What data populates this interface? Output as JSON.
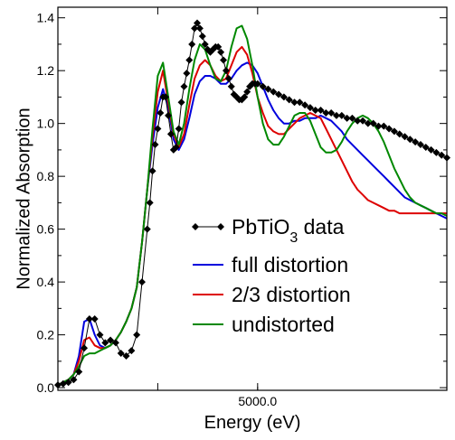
{
  "chart_data": {
    "type": "line",
    "xlabel": "Energy (eV)",
    "ylabel": "Normalized Absorption",
    "xlim": [
      4962,
      5036
    ],
    "ylim": [
      -0.01,
      1.44
    ],
    "x_tick_major": [
      4981,
      5000
    ],
    "x_tick_labels": [
      "",
      "5000.0"
    ],
    "y_ticks": [
      0.0,
      0.2,
      0.4,
      0.6,
      0.8,
      1.0,
      1.2,
      1.4
    ],
    "y_tick_labels": [
      "0.0",
      "0.2",
      "0.4",
      "0.6",
      "0.8",
      "1.0",
      "1.2",
      "1.4"
    ],
    "grid": false,
    "legend": {
      "placement": "center-right",
      "data_label_prefix": "PbTiO",
      "data_label_sub": "3",
      "data_label_suffix": " data"
    },
    "series": [
      {
        "name": "PbTiO3 data",
        "color": "#000000",
        "marker": "diamond",
        "x": [
          4962,
          4963,
          4964,
          4965,
          4966,
          4967,
          4968,
          4969,
          4970,
          4971,
          4972,
          4973,
          4974,
          4975,
          4976,
          4977,
          4978,
          4979,
          4979.5,
          4980,
          4980.5,
          4981,
          4981.5,
          4982,
          4982.5,
          4983,
          4983.5,
          4984,
          4984.5,
          4985,
          4985.5,
          4986,
          4986.5,
          4987,
          4987.5,
          4988,
          4988.5,
          4989,
          4989.5,
          4990,
          4990.5,
          4991,
          4991.5,
          4992,
          4992.5,
          4993,
          4993.5,
          4994,
          4994.5,
          4995,
          4995.5,
          4996,
          4996.5,
          4997,
          4997.5,
          4998,
          4998.5,
          4999,
          4999.5,
          5000,
          5001,
          5002,
          5003,
          5004,
          5005,
          5006,
          5007,
          5008,
          5009,
          5010,
          5011,
          5012,
          5013,
          5014,
          5015,
          5016,
          5017,
          5018,
          5019,
          5020,
          5021,
          5022,
          5023,
          5024,
          5025,
          5026,
          5027,
          5028,
          5029,
          5030,
          5031,
          5032,
          5033,
          5034,
          5035,
          5036
        ],
        "y": [
          0.01,
          0.015,
          0.02,
          0.03,
          0.06,
          0.15,
          0.26,
          0.26,
          0.2,
          0.17,
          0.18,
          0.17,
          0.13,
          0.12,
          0.14,
          0.2,
          0.4,
          0.6,
          0.7,
          0.82,
          0.92,
          0.98,
          1.04,
          1.1,
          1.1,
          1.03,
          0.96,
          0.9,
          0.91,
          0.98,
          1.08,
          1.14,
          1.19,
          1.24,
          1.3,
          1.36,
          1.38,
          1.36,
          1.33,
          1.3,
          1.28,
          1.27,
          1.28,
          1.29,
          1.29,
          1.27,
          1.24,
          1.2,
          1.17,
          1.14,
          1.11,
          1.1,
          1.09,
          1.09,
          1.1,
          1.12,
          1.14,
          1.15,
          1.15,
          1.15,
          1.14,
          1.13,
          1.12,
          1.11,
          1.1,
          1.09,
          1.08,
          1.08,
          1.07,
          1.06,
          1.05,
          1.05,
          1.04,
          1.04,
          1.03,
          1.03,
          1.02,
          1.02,
          1.01,
          1.01,
          1.0,
          1.0,
          0.99,
          0.99,
          0.98,
          0.97,
          0.96,
          0.95,
          0.94,
          0.93,
          0.92,
          0.91,
          0.9,
          0.89,
          0.88,
          0.87
        ]
      },
      {
        "name": "full distortion",
        "color": "#0000dd",
        "x": [
          4962,
          4963,
          4964,
          4965,
          4966,
          4967,
          4968,
          4969,
          4970,
          4971,
          4972,
          4973,
          4974,
          4975,
          4976,
          4977,
          4978,
          4979,
          4980,
          4981,
          4982,
          4983,
          4984,
          4985,
          4986,
          4987,
          4988,
          4989,
          4990,
          4991,
          4992,
          4993,
          4994,
          4995,
          4996,
          4997,
          4998,
          4999,
          5000,
          5001,
          5002,
          5003,
          5004,
          5005,
          5006,
          5007,
          5008,
          5009,
          5010,
          5011,
          5012,
          5013,
          5014,
          5015,
          5016,
          5017,
          5018,
          5019,
          5020,
          5021,
          5022,
          5023,
          5024,
          5025,
          5026,
          5027,
          5028,
          5029,
          5030,
          5031,
          5032,
          5033,
          5034,
          5035,
          5036
        ],
        "y": [
          0.01,
          0.02,
          0.03,
          0.05,
          0.12,
          0.25,
          0.26,
          0.2,
          0.16,
          0.15,
          0.16,
          0.18,
          0.21,
          0.25,
          0.3,
          0.38,
          0.55,
          0.75,
          0.92,
          1.06,
          1.13,
          1.06,
          0.94,
          0.9,
          0.94,
          1.02,
          1.11,
          1.16,
          1.18,
          1.18,
          1.17,
          1.15,
          1.15,
          1.17,
          1.2,
          1.22,
          1.23,
          1.22,
          1.19,
          1.14,
          1.09,
          1.05,
          1.02,
          1.0,
          1.0,
          1.01,
          1.01,
          1.02,
          1.02,
          1.02,
          1.03,
          1.02,
          1.01,
          0.99,
          0.97,
          0.94,
          0.92,
          0.9,
          0.88,
          0.86,
          0.84,
          0.82,
          0.8,
          0.78,
          0.76,
          0.74,
          0.72,
          0.71,
          0.7,
          0.69,
          0.68,
          0.67,
          0.66,
          0.65,
          0.64
        ]
      },
      {
        "name": "2/3 distortion",
        "color": "#dd0000",
        "x": [
          4962,
          4963,
          4964,
          4965,
          4966,
          4967,
          4968,
          4969,
          4970,
          4971,
          4972,
          4973,
          4974,
          4975,
          4976,
          4977,
          4978,
          4979,
          4980,
          4981,
          4982,
          4983,
          4984,
          4985,
          4986,
          4987,
          4988,
          4989,
          4990,
          4991,
          4992,
          4993,
          4994,
          4995,
          4996,
          4997,
          4998,
          4999,
          5000,
          5001,
          5002,
          5003,
          5004,
          5005,
          5006,
          5007,
          5008,
          5009,
          5010,
          5011,
          5012,
          5013,
          5014,
          5015,
          5016,
          5017,
          5018,
          5019,
          5020,
          5021,
          5022,
          5023,
          5024,
          5025,
          5026,
          5027,
          5028,
          5029,
          5030,
          5031,
          5032,
          5033,
          5034,
          5035,
          5036
        ],
        "y": [
          0.01,
          0.02,
          0.03,
          0.05,
          0.1,
          0.18,
          0.19,
          0.16,
          0.15,
          0.15,
          0.16,
          0.18,
          0.21,
          0.25,
          0.3,
          0.38,
          0.55,
          0.75,
          0.95,
          1.12,
          1.2,
          1.08,
          0.96,
          0.91,
          0.96,
          1.07,
          1.17,
          1.22,
          1.24,
          1.22,
          1.18,
          1.16,
          1.17,
          1.22,
          1.27,
          1.29,
          1.26,
          1.19,
          1.1,
          1.04,
          0.99,
          0.97,
          0.96,
          0.96,
          0.98,
          1.0,
          1.02,
          1.03,
          1.04,
          1.03,
          1.02,
          0.98,
          0.94,
          0.9,
          0.86,
          0.82,
          0.78,
          0.75,
          0.73,
          0.71,
          0.7,
          0.69,
          0.68,
          0.67,
          0.67,
          0.66,
          0.66,
          0.66,
          0.66,
          0.66,
          0.66,
          0.66,
          0.66,
          0.66,
          0.66
        ]
      },
      {
        "name": "undistorted",
        "color": "#008800",
        "x": [
          4962,
          4963,
          4964,
          4965,
          4966,
          4967,
          4968,
          4969,
          4970,
          4971,
          4972,
          4973,
          4974,
          4975,
          4976,
          4977,
          4978,
          4979,
          4980,
          4981,
          4982,
          4983,
          4984,
          4985,
          4986,
          4987,
          4988,
          4989,
          4990,
          4991,
          4992,
          4993,
          4994,
          4995,
          4996,
          4997,
          4998,
          4999,
          5000,
          5001,
          5002,
          5003,
          5004,
          5005,
          5006,
          5007,
          5008,
          5009,
          5010,
          5011,
          5012,
          5013,
          5014,
          5015,
          5016,
          5017,
          5018,
          5019,
          5020,
          5021,
          5022,
          5023,
          5024,
          5025,
          5026,
          5027,
          5028,
          5029,
          5030,
          5031,
          5032,
          5033,
          5034,
          5035,
          5036
        ],
        "y": [
          0.01,
          0.02,
          0.03,
          0.05,
          0.08,
          0.12,
          0.13,
          0.13,
          0.14,
          0.15,
          0.16,
          0.18,
          0.21,
          0.25,
          0.3,
          0.38,
          0.55,
          0.75,
          0.98,
          1.18,
          1.23,
          1.1,
          0.97,
          0.92,
          1.0,
          1.13,
          1.24,
          1.3,
          1.28,
          1.22,
          1.17,
          1.16,
          1.2,
          1.29,
          1.36,
          1.37,
          1.32,
          1.22,
          1.1,
          1.0,
          0.94,
          0.92,
          0.92,
          0.95,
          0.99,
          1.03,
          1.04,
          1.04,
          1.01,
          0.96,
          0.91,
          0.89,
          0.89,
          0.9,
          0.93,
          0.97,
          1.0,
          1.02,
          1.03,
          1.02,
          1.0,
          0.97,
          0.93,
          0.88,
          0.83,
          0.79,
          0.75,
          0.72,
          0.7,
          0.69,
          0.68,
          0.67,
          0.66,
          0.66,
          0.65
        ]
      }
    ]
  }
}
